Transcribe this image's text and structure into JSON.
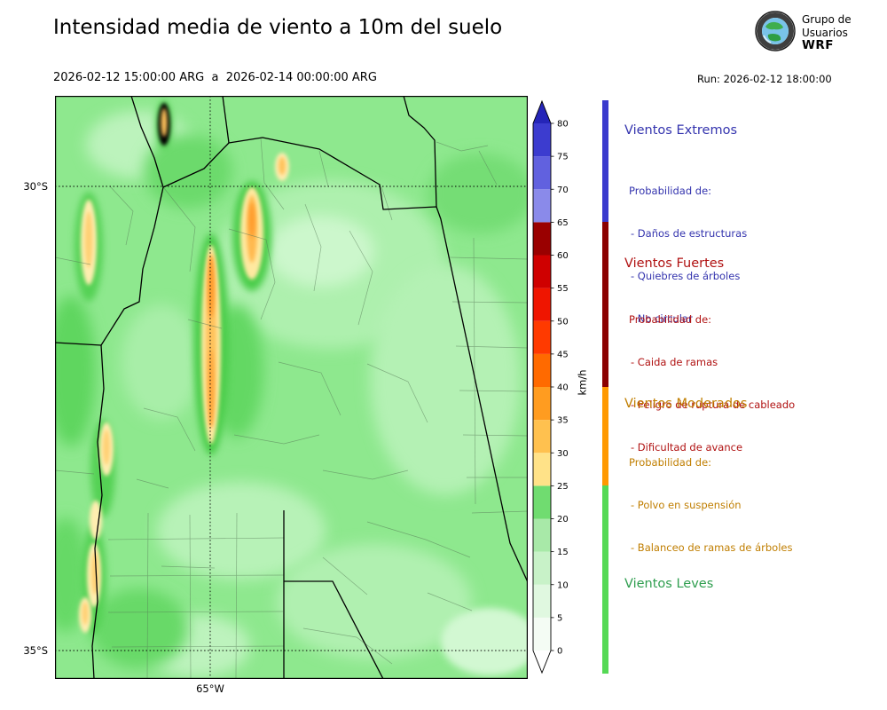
{
  "header": {
    "title": "Intensidad media de viento a 10m del suelo",
    "date_range": "2026-02-12 15:00:00 ARG  a  2026-02-14 00:00:00 ARG",
    "run_label": "Run: 2026-02-12 18:00:00",
    "logo": {
      "line1": "Grupo de",
      "line2": "Usuarios",
      "line3": "WRF"
    }
  },
  "map": {
    "lat_top": "30°S",
    "lat_bottom": "35°S",
    "lon": "65°W"
  },
  "colorbar": {
    "unit": "km/h",
    "min": 0,
    "max": 80,
    "ticks": [
      0,
      5,
      10,
      15,
      20,
      25,
      30,
      35,
      40,
      45,
      50,
      55,
      60,
      65,
      70,
      75,
      80
    ],
    "segments": [
      {
        "from": 0,
        "to": 5,
        "color": "#f4fcf4"
      },
      {
        "from": 5,
        "to": 10,
        "color": "#e0f8e0"
      },
      {
        "from": 10,
        "to": 15,
        "color": "#c8f2c8"
      },
      {
        "from": 15,
        "to": 20,
        "color": "#a8e9a8"
      },
      {
        "from": 20,
        "to": 25,
        "color": "#70dc70"
      },
      {
        "from": 25,
        "to": 30,
        "color": "#ffe288"
      },
      {
        "from": 30,
        "to": 35,
        "color": "#ffc14f"
      },
      {
        "from": 35,
        "to": 40,
        "color": "#ff9c20"
      },
      {
        "from": 40,
        "to": 45,
        "color": "#ff6a00"
      },
      {
        "from": 45,
        "to": 50,
        "color": "#ff3a00"
      },
      {
        "from": 50,
        "to": 55,
        "color": "#ef1500"
      },
      {
        "from": 55,
        "to": 60,
        "color": "#cf0000"
      },
      {
        "from": 60,
        "to": 65,
        "color": "#9a0000"
      },
      {
        "from": 65,
        "to": 70,
        "color": "#8a8aea"
      },
      {
        "from": 70,
        "to": 75,
        "color": "#6161df"
      },
      {
        "from": 75,
        "to": 80,
        "color": "#3c3ccf"
      }
    ],
    "over_color": "#2525b8",
    "under_color": "#ffffff"
  },
  "legend": {
    "prob_header": "Probabilidad de:",
    "sections": [
      {
        "title": "Vientos Extremos",
        "bar_color": "#3a3acd",
        "text_color": "#3434ae",
        "items": [
          "- Daños de estructuras",
          "- Quiebres de árboles",
          "- No circular"
        ]
      },
      {
        "title": "Vientos Fuertes",
        "bar_color": "#8b0000",
        "text_color": "#b01111",
        "items": [
          "- Caida de ramas",
          "- Peligro de ruptura de cableado",
          "- Dificultad de avance"
        ]
      },
      {
        "title": "Vientos Moderados",
        "bar_color": "#ff9900",
        "text_color": "#c07e00",
        "items": [
          "- Polvo en suspensión",
          "- Balanceo de ramas de árboles"
        ]
      },
      {
        "title": "Vientos Leves",
        "bar_color": "#55d955",
        "text_color": "#2f9e4f",
        "items": []
      }
    ]
  }
}
